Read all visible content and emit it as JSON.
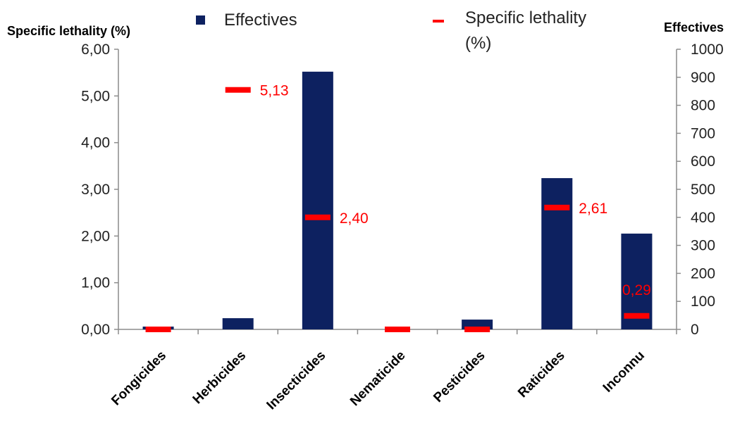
{
  "chart_data": {
    "type": "bar",
    "categories": [
      "Fongicides",
      "Herbicides",
      "Insecticides",
      "Nematicide",
      "Pesticides",
      "Raticides",
      "Inconnu"
    ],
    "series": [
      {
        "name": "Effectives",
        "kind": "bar",
        "axis": "right",
        "color": "#0d2160",
        "values": [
          10,
          40,
          920,
          0,
          35,
          540,
          342
        ]
      },
      {
        "name": "Specific lethality (%)",
        "kind": "dash-marker",
        "axis": "left",
        "color": "#ff0000",
        "values": [
          0,
          5.13,
          2.4,
          0,
          0,
          2.61,
          0.29
        ],
        "labels": [
          "",
          "5,13",
          "2,40",
          "",
          "",
          "2,61",
          "0,29"
        ]
      }
    ],
    "left_axis": {
      "title": "Specific lethality (%)",
      "ylim": [
        0,
        6
      ],
      "ticks": [
        "0,00",
        "1,00",
        "2,00",
        "3,00",
        "4,00",
        "5,00",
        "6,00"
      ]
    },
    "right_axis": {
      "title": "Effectives",
      "ylim": [
        0,
        1000
      ],
      "ticks": [
        "0",
        "100",
        "200",
        "300",
        "400",
        "500",
        "600",
        "700",
        "800",
        "900",
        "1000"
      ]
    },
    "legend": {
      "placement": "top",
      "items": [
        {
          "label": "Effectives",
          "symbol": "square",
          "color": "#0d2160"
        },
        {
          "label_line1": "Specific lethality",
          "label_line2": "(%)",
          "symbol": "dash",
          "color": "#ff0000"
        }
      ]
    },
    "grid": false
  }
}
